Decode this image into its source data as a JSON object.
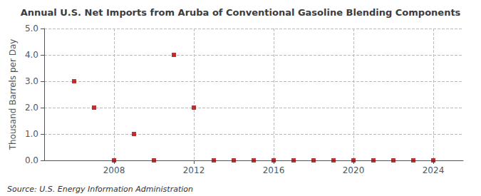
{
  "chart_data": {
    "type": "scatter",
    "title": "Annual U.S. Net Imports from Aruba of Conventional Gasoline Blending Components",
    "ylabel": "Thousand Barrels per Day",
    "annotations": [
      "Source: U.S. Energy Information Administration"
    ],
    "x": [
      2006,
      2007,
      2008,
      2009,
      2010,
      2011,
      2012,
      2013,
      2014,
      2015,
      2016,
      2017,
      2018,
      2019,
      2020,
      2021,
      2022,
      2023,
      2024
    ],
    "values": [
      3.0,
      2.0,
      0.0,
      1.0,
      0.0,
      4.0,
      2.0,
      0.0,
      0.0,
      0.0,
      0.0,
      0.0,
      0.0,
      0.0,
      0.0,
      0.0,
      0.0,
      0.0,
      0.0
    ],
    "color": "#aa0000",
    "marker": "square",
    "xlim": [
      2004.5,
      2025.5
    ],
    "xticks": [
      2008,
      2012,
      2016,
      2020,
      2024
    ],
    "ylim": [
      0.0,
      5.0
    ],
    "yticks": [
      {
        "value": 0.0,
        "label": "0.0"
      },
      {
        "value": 1.0,
        "label": "1.0"
      },
      {
        "value": 2.0,
        "label": "2.0"
      },
      {
        "value": 3.0,
        "label": "3.0"
      },
      {
        "value": 4.0,
        "label": "4.0"
      },
      {
        "value": 5.0,
        "label": "5.0"
      }
    ],
    "grid": true
  }
}
